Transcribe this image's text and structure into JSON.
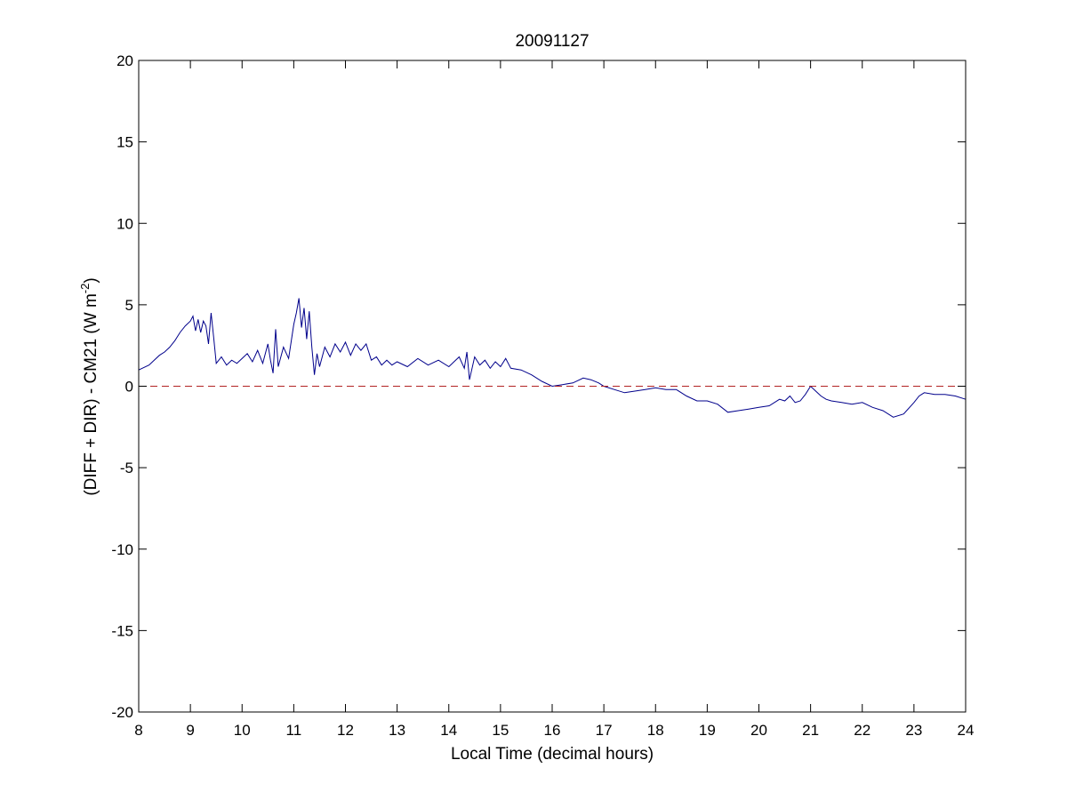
{
  "chart_data": {
    "type": "line",
    "title": "20091127",
    "xlabel": "Local Time (decimal hours)",
    "ylabel": {
      "prefix": "(DIFF + DIR) - CM21 (W m",
      "superscript": "-2",
      "suffix": ")"
    },
    "xlim": [
      8,
      24
    ],
    "ylim": [
      -20,
      20
    ],
    "xticks": [
      8,
      9,
      10,
      11,
      12,
      13,
      14,
      15,
      16,
      17,
      18,
      19,
      20,
      21,
      22,
      23,
      24
    ],
    "yticks": [
      -20,
      -15,
      -10,
      -5,
      0,
      5,
      10,
      15,
      20
    ],
    "grid": false,
    "series": [
      {
        "color": "#00008B",
        "style": "solid",
        "x": [
          8.0,
          8.2,
          8.3,
          8.4,
          8.5,
          8.6,
          8.7,
          8.8,
          8.9,
          9.0,
          9.05,
          9.1,
          9.15,
          9.2,
          9.25,
          9.3,
          9.35,
          9.4,
          9.45,
          9.5,
          9.6,
          9.7,
          9.8,
          9.9,
          10.0,
          10.1,
          10.2,
          10.3,
          10.4,
          10.5,
          10.55,
          10.6,
          10.65,
          10.7,
          10.8,
          10.9,
          11.0,
          11.05,
          11.1,
          11.15,
          11.2,
          11.25,
          11.3,
          11.35,
          11.4,
          11.45,
          11.5,
          11.6,
          11.7,
          11.8,
          11.9,
          12.0,
          12.1,
          12.2,
          12.3,
          12.4,
          12.5,
          12.6,
          12.7,
          12.8,
          12.9,
          13.0,
          13.2,
          13.4,
          13.6,
          13.8,
          14.0,
          14.2,
          14.3,
          14.35,
          14.4,
          14.5,
          14.6,
          14.7,
          14.8,
          14.9,
          15.0,
          15.1,
          15.2,
          15.4,
          15.6,
          15.8,
          16.0,
          16.2,
          16.4,
          16.6,
          16.75,
          16.9,
          17.0,
          17.2,
          17.4,
          17.6,
          17.8,
          18.0,
          18.2,
          18.4,
          18.6,
          18.8,
          19.0,
          19.2,
          19.4,
          19.6,
          19.8,
          20.0,
          20.2,
          20.4,
          20.5,
          20.6,
          20.7,
          20.8,
          20.9,
          21.0,
          21.1,
          21.2,
          21.3,
          21.4,
          21.6,
          21.8,
          22.0,
          22.2,
          22.4,
          22.6,
          22.8,
          23.0,
          23.1,
          23.2,
          23.4,
          23.6,
          23.8,
          24.0
        ],
        "y": [
          1.0,
          1.3,
          1.6,
          1.9,
          2.1,
          2.4,
          2.8,
          3.3,
          3.7,
          4.0,
          4.3,
          3.4,
          4.1,
          3.3,
          4.0,
          3.7,
          2.6,
          4.5,
          3.0,
          1.4,
          1.8,
          1.3,
          1.6,
          1.4,
          1.7,
          2.0,
          1.5,
          2.2,
          1.4,
          2.6,
          1.6,
          0.8,
          3.5,
          1.2,
          2.4,
          1.7,
          3.8,
          4.5,
          5.4,
          3.6,
          4.8,
          2.9,
          4.6,
          2.4,
          0.7,
          2.0,
          1.2,
          2.4,
          1.8,
          2.6,
          2.1,
          2.7,
          1.9,
          2.6,
          2.2,
          2.6,
          1.6,
          1.8,
          1.3,
          1.6,
          1.3,
          1.5,
          1.2,
          1.7,
          1.3,
          1.6,
          1.2,
          1.8,
          1.1,
          2.1,
          0.4,
          1.8,
          1.3,
          1.6,
          1.1,
          1.5,
          1.2,
          1.7,
          1.1,
          1.0,
          0.7,
          0.3,
          0.0,
          0.1,
          0.2,
          0.5,
          0.4,
          0.2,
          0.0,
          -0.2,
          -0.4,
          -0.3,
          -0.2,
          -0.1,
          -0.2,
          -0.2,
          -0.6,
          -0.9,
          -0.9,
          -1.1,
          -1.6,
          -1.5,
          -1.4,
          -1.3,
          -1.2,
          -0.8,
          -0.9,
          -0.6,
          -1.0,
          -0.9,
          -0.5,
          0.0,
          -0.3,
          -0.6,
          -0.8,
          -0.9,
          -1.0,
          -1.1,
          -1.0,
          -1.3,
          -1.5,
          -1.9,
          -1.7,
          -1.0,
          -0.6,
          -0.4,
          -0.5,
          -0.5,
          -0.6,
          -0.8
        ]
      },
      {
        "color": "#B22222",
        "style": "dashed",
        "x": [
          8,
          24
        ],
        "y": [
          0,
          0
        ]
      }
    ]
  }
}
